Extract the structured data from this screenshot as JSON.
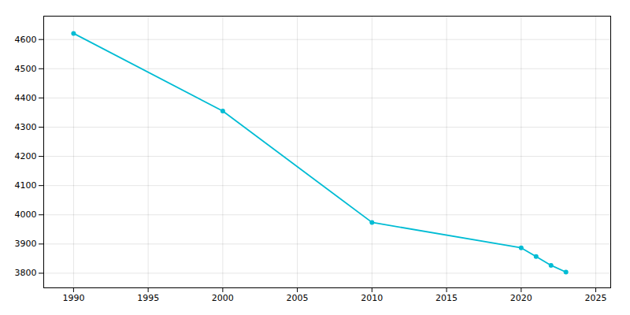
{
  "chart_data": {
    "type": "line",
    "x": [
      1990,
      2000,
      2010,
      2020,
      2021,
      2022,
      2023
    ],
    "values": [
      4621,
      4355,
      3974,
      3887,
      3857,
      3827,
      3804
    ],
    "color": "#00bcd4",
    "marker": "o",
    "xlim": [
      1988,
      2026
    ],
    "ylim": [
      3750,
      4680
    ],
    "xticks": [
      1990,
      1995,
      2000,
      2005,
      2010,
      2015,
      2020,
      2025
    ],
    "yticks": [
      3800,
      3900,
      4000,
      4100,
      4200,
      4300,
      4400,
      4500,
      4600
    ],
    "grid": true
  }
}
